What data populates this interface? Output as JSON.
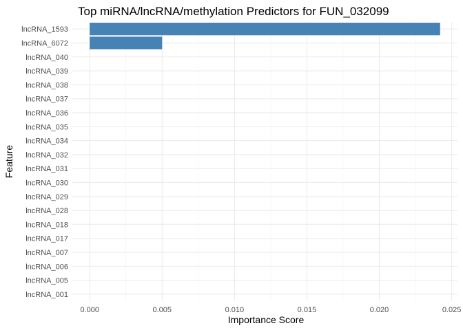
{
  "chart_data": {
    "type": "bar",
    "orientation": "horizontal",
    "title": "Top miRNA/lncRNA/methylation Predictors for FUN_032099",
    "xlabel": "Importance Score",
    "ylabel": "Feature",
    "categories": [
      "lncRNA_1593",
      "lncRNA_6072",
      "lncRNA_040",
      "lncRNA_039",
      "lncRNA_038",
      "lncRNA_037",
      "lncRNA_036",
      "lncRNA_035",
      "lncRNA_034",
      "lncRNA_032",
      "lncRNA_031",
      "lncRNA_030",
      "lncRNA_029",
      "lncRNA_028",
      "lncRNA_018",
      "lncRNA_017",
      "lncRNA_007",
      "lncRNA_006",
      "lncRNA_005",
      "lncRNA_001"
    ],
    "values": [
      0.0242,
      0.005,
      0,
      0,
      0,
      0,
      0,
      0,
      0,
      0,
      0,
      0,
      0,
      0,
      0,
      0,
      0,
      0,
      0,
      0
    ],
    "xlim": [
      -0.0012,
      0.0254
    ],
    "xticks": [
      0.0,
      0.005,
      0.01,
      0.015,
      0.02,
      0.025
    ],
    "xtick_labels": [
      "0.000",
      "0.005",
      "0.010",
      "0.015",
      "0.020",
      "0.025"
    ],
    "bar_color": "#4682b4",
    "grid": true,
    "legend": "none"
  }
}
